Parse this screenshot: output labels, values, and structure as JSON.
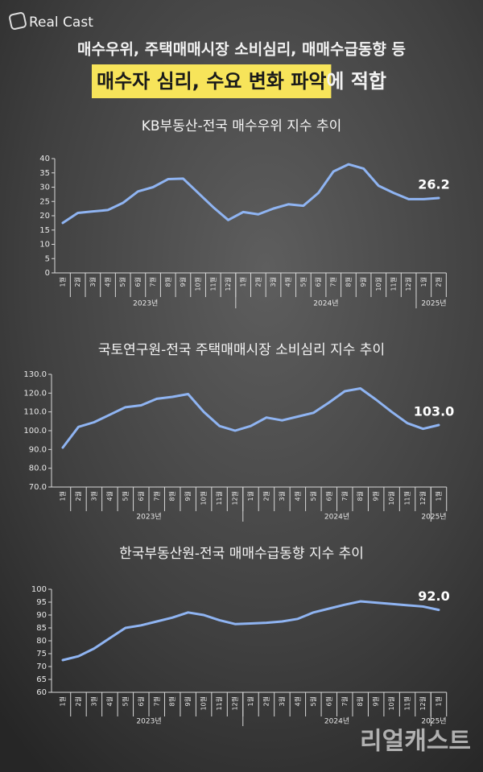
{
  "header": {
    "logo": "Real Cast",
    "headline": "매수우위, 주택매매시장 소비심리, 매매수급동향 등",
    "highlight": "매수자 심리, 수요 변화 파악",
    "highlight_tail": "에 적합"
  },
  "watermark": "리얼캐스트",
  "chart_data": [
    {
      "type": "line",
      "title": "KB부동산-전국 매수우위 지수 추이",
      "categories": [
        "1월",
        "2월",
        "3월",
        "4월",
        "5월",
        "6월",
        "7월",
        "8월",
        "9월",
        "10월",
        "11월",
        "12월",
        "1월",
        "2월",
        "3월",
        "4월",
        "5월",
        "6월",
        "7월",
        "8월",
        "9월",
        "10월",
        "11월",
        "12월",
        "1월",
        "2월"
      ],
      "year_labels": [
        "2023년",
        "2024년",
        "2025년"
      ],
      "color": "#8fb4f2",
      "values": [
        17.5,
        21,
        21.5,
        22,
        24.5,
        28.5,
        30,
        32.8,
        33,
        28,
        23,
        18.5,
        21.3,
        20.5,
        22.5,
        24,
        23.5,
        28,
        35.5,
        38,
        36.5,
        30.5,
        28,
        25.8,
        25.8,
        26.2
      ],
      "value_labels": [
        null,
        null,
        null,
        null,
        null,
        null,
        null,
        null,
        null,
        null,
        null,
        null,
        null,
        null,
        null,
        null,
        null,
        null,
        null,
        null,
        null,
        null,
        null,
        null,
        null,
        "26.2"
      ],
      "ylim": [
        0,
        40
      ],
      "yticks": [
        0,
        5,
        10,
        15,
        20,
        25,
        30,
        35,
        40
      ]
    },
    {
      "type": "line",
      "title": "국토연구원-전국 주택매매시장 소비심리 지수 추이",
      "categories": [
        "1월",
        "2월",
        "3월",
        "4월",
        "5월",
        "6월",
        "7월",
        "8월",
        "9월",
        "10월",
        "11월",
        "12월",
        "1월",
        "2월",
        "3월",
        "4월",
        "5월",
        "6월",
        "7월",
        "8월",
        "9월",
        "10월",
        "11월",
        "12월",
        "1월"
      ],
      "year_labels": [
        "2023년",
        "2024년",
        "2025년"
      ],
      "color": "#8fb4f2",
      "values": [
        91,
        102,
        104.5,
        108.5,
        112.5,
        113.5,
        117,
        118,
        119.5,
        110,
        102.5,
        100,
        102.5,
        107,
        105.5,
        107.5,
        109.5,
        115,
        121,
        122.5,
        116.5,
        110,
        104,
        101,
        103
      ],
      "value_labels": [
        null,
        null,
        null,
        null,
        null,
        null,
        null,
        null,
        null,
        null,
        null,
        null,
        null,
        null,
        null,
        null,
        null,
        null,
        null,
        null,
        null,
        null,
        null,
        null,
        "103.0"
      ],
      "ylim": [
        70,
        130
      ],
      "yticks": [
        {
          "value": 70,
          "label": "70.0"
        },
        {
          "value": 80,
          "label": "80.0"
        },
        {
          "value": 90,
          "label": "90.0"
        },
        {
          "value": 100,
          "label": "100.0"
        },
        {
          "value": 110,
          "label": "110.0"
        },
        {
          "value": 120,
          "label": "120.0"
        },
        {
          "value": 130,
          "label": "130.0"
        }
      ]
    },
    {
      "type": "line",
      "title": "한국부동산원-전국 매매수급동향 지수 추이",
      "categories": [
        "1월",
        "2월",
        "3월",
        "4월",
        "5월",
        "6월",
        "7월",
        "8월",
        "9월",
        "10월",
        "11월",
        "12월",
        "1월",
        "2월",
        "3월",
        "4월",
        "5월",
        "6월",
        "7월",
        "8월",
        "9월",
        "10월",
        "11월",
        "12월",
        "1월"
      ],
      "year_labels": [
        "2023년",
        "2024년",
        "2025년"
      ],
      "color": "#8fb4f2",
      "values": [
        72.5,
        74,
        77,
        81,
        85,
        86,
        87.5,
        89,
        91,
        90,
        88,
        86.5,
        86.7,
        87,
        87.5,
        88.5,
        91,
        92.5,
        94,
        95.3,
        94.8,
        94.3,
        93.8,
        93.3,
        92
      ],
      "value_labels": [
        null,
        null,
        null,
        null,
        null,
        null,
        null,
        null,
        null,
        null,
        null,
        null,
        null,
        null,
        null,
        null,
        null,
        null,
        null,
        null,
        null,
        null,
        null,
        null,
        "92.0"
      ],
      "ylim": [
        60,
        100
      ],
      "yticks": [
        60,
        65,
        70,
        75,
        80,
        85,
        90,
        95,
        100
      ]
    }
  ]
}
